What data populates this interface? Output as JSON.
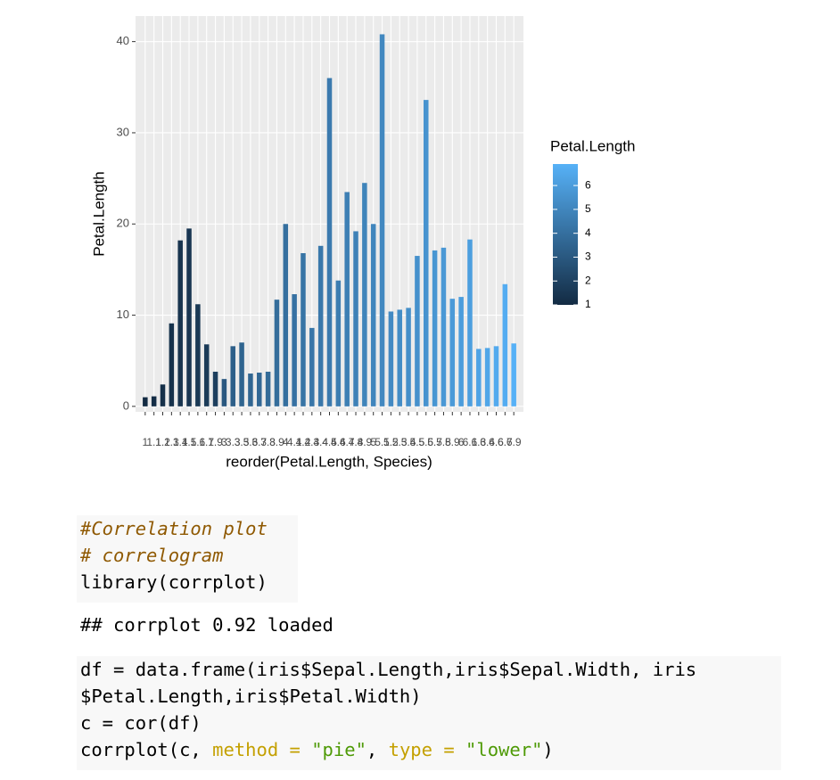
{
  "chart_data": {
    "type": "bar",
    "xlabel": "reorder(Petal.Length, Species)",
    "ylabel": "Petal.Length",
    "legend_title": "Petal.Length",
    "categories": [
      "1",
      "1.1",
      "1.2",
      "1.3",
      "1.4",
      "1.5",
      "1.6",
      "1.7",
      "1.9",
      "3",
      "3.3",
      "3.5",
      "3.6",
      "3.7",
      "3.8",
      "3.9",
      "4",
      "4.1",
      "4.2",
      "4.3",
      "4.4",
      "4.5",
      "4.6",
      "4.7",
      "4.8",
      "4.9",
      "5",
      "5.1",
      "5.2",
      "5.3",
      "5.4",
      "5.5",
      "5.6",
      "5.7",
      "5.8",
      "5.9",
      "6",
      "6.1",
      "6.3",
      "6.4",
      "6.6",
      "6.7",
      "6.9"
    ],
    "values": [
      1,
      1.1,
      2.4,
      9.1,
      18.2,
      19.5,
      11.2,
      6.8,
      3.8,
      3,
      6.6,
      7,
      3.6,
      3.7,
      3.8,
      11.7,
      20,
      12.3,
      16.8,
      8.6,
      17.6,
      36,
      13.8,
      23.5,
      19.2,
      24.5,
      20,
      40.8,
      10.4,
      10.6,
      10.8,
      16.5,
      33.6,
      17.1,
      17.4,
      11.8,
      12,
      18.3,
      6.3,
      6.4,
      6.6,
      13.4,
      6.9
    ],
    "ylim": [
      -0.6,
      42.8
    ],
    "yticks": [
      0,
      10,
      20,
      30,
      40
    ],
    "grid": true,
    "color_low": "#132B43",
    "color_high": "#56B1F7",
    "legend_ticks": [
      1,
      2,
      3,
      4,
      5,
      6
    ]
  },
  "code_blocks": [
    {
      "background": true,
      "lines": [
        [
          {
            "text": "#Correlation plot",
            "color": "#8f5902",
            "italic": true
          }
        ],
        [
          {
            "text": "# correlogram",
            "color": "#8f5902",
            "italic": true
          }
        ],
        [
          "library(corrplot)"
        ]
      ]
    },
    {
      "background": false,
      "lines": [
        [
          "## corrplot 0.92 loaded"
        ]
      ]
    },
    {
      "background": true,
      "lines": [
        [
          "df = data.frame(iris$Sepal.Length,iris$Sepal.Width, iris"
        ],
        [
          "$Petal.Length,iris$Petal.Width)"
        ],
        [
          "c = cor(df)"
        ],
        [
          "corrplot(c, ",
          {
            "text": "method",
            "color": "#c4a000"
          },
          " ",
          {
            "text": "=",
            "color": "#c4a000"
          },
          " ",
          {
            "text": "\"pie\"",
            "color": "#4e9a06"
          },
          ", ",
          {
            "text": "type",
            "color": "#c4a000"
          },
          " ",
          {
            "text": "=",
            "color": "#c4a000"
          },
          " ",
          {
            "text": "\"lower\"",
            "color": "#4e9a06"
          },
          ")"
        ]
      ]
    }
  ]
}
